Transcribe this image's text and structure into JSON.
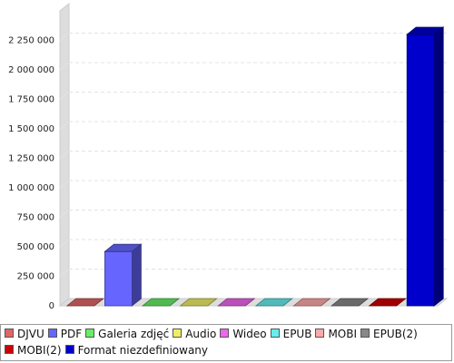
{
  "chart_data": {
    "type": "bar",
    "title": "",
    "xlabel": "",
    "ylabel": "",
    "ylim": [
      0,
      2500000
    ],
    "y_ticks": [
      0,
      250000,
      500000,
      750000,
      1000000,
      1250000,
      1500000,
      1750000,
      2000000,
      2250000
    ],
    "y_tick_labels": [
      "0",
      "250 000",
      "500 000",
      "750 000",
      "1 000 000",
      "1 250 000",
      "1 500 000",
      "1 750 000",
      "2 000 000",
      "2 250 000"
    ],
    "grid": true,
    "legend_position": "bottom",
    "categories": [
      "DJVU",
      "PDF",
      "Galeria zdjęć",
      "Audio",
      "Wideo",
      "EPUB",
      "MOBI",
      "EPUB(2)",
      "MOBI(2)",
      "Format niezdefiniowany"
    ],
    "values": [
      0,
      460000,
      0,
      0,
      0,
      0,
      0,
      0,
      0,
      2300000
    ],
    "colors": [
      "#e06666",
      "#6666ff",
      "#66ee66",
      "#eeee66",
      "#ee66ee",
      "#66eeee",
      "#ffaaaa",
      "#888888",
      "#cc0000",
      "#0000cc"
    ]
  }
}
